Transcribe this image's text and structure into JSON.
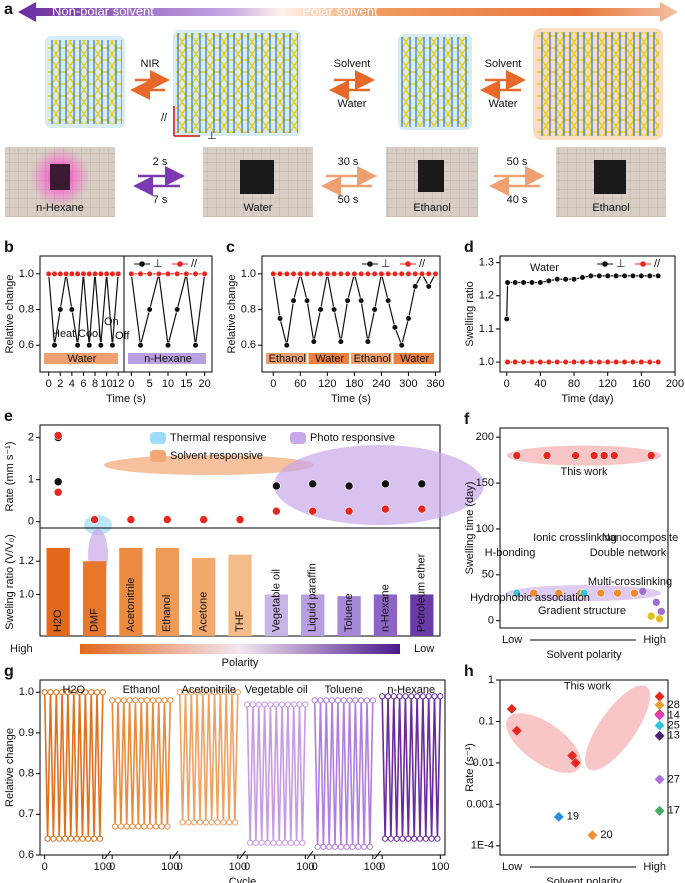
{
  "panel_a": {
    "label": "a",
    "banner": [
      "Non-polar solvent",
      "Polar solvent"
    ],
    "transitions": [
      {
        "top": "NIR"
      },
      {
        "top": "Solvent",
        "bottom": "Water"
      },
      {
        "top": "Solvent",
        "bottom": "Water"
      }
    ],
    "axes": [
      "//",
      "⊥"
    ],
    "photos": [
      "n-Hexane",
      "Water",
      "Ethanol",
      "Ethanol"
    ],
    "times": [
      [
        "2 s",
        "7 s"
      ],
      [
        "30 s",
        "50 s"
      ],
      [
        "50 s",
        "40 s"
      ]
    ]
  },
  "chart_data": [
    {
      "type": "line",
      "label": "b",
      "ylabel": "Relative change",
      "xlabel": "Time (s)",
      "xlim": [
        -1.5,
        13
      ],
      "xticks": [
        0,
        2,
        4,
        6,
        8,
        10,
        12
      ],
      "ylim": [
        0.45,
        1.1
      ],
      "yticks": [
        0.6,
        0.8,
        {
          "value": 1,
          "label": "1.0"
        }
      ],
      "x": [
        0,
        1,
        2,
        3,
        4,
        5,
        6,
        7,
        8,
        9,
        10,
        11,
        12
      ],
      "series": [
        {
          "color": "#111111",
          "values": [
            1,
            0.6,
            0.8,
            1,
            0.8,
            0.6,
            1,
            0.6,
            1,
            0.6,
            1,
            0.6,
            1
          ]
        },
        {
          "color": "#e8261e",
          "values": [
            1,
            1,
            1,
            1,
            1,
            1,
            1,
            1,
            1,
            1,
            1,
            1,
            1
          ]
        }
      ],
      "segments": [
        {
          "label": "Water",
          "color": "#f0a070"
        }
      ],
      "annotations": [
        "Heat",
        "Cool",
        "On",
        "Off"
      ]
    },
    {
      "type": "line",
      "xlim": [
        -2,
        22
      ],
      "xticks": [
        0,
        5,
        10,
        15,
        20
      ],
      "ylim": [
        0.45,
        1.1
      ],
      "x": [
        0,
        2.5,
        5,
        7.5,
        10,
        12.5,
        15,
        17.5,
        20
      ],
      "series": [
        {
          "name": "⊥",
          "color": "#111111",
          "values": [
            1,
            0.6,
            0.8,
            1,
            0.6,
            0.8,
            1,
            0.6,
            1
          ]
        },
        {
          "name": "//",
          "color": "#e8261e",
          "values": [
            1,
            1,
            1,
            1,
            1,
            1,
            1,
            1,
            1
          ]
        }
      ],
      "segments": [
        {
          "label": "n-Hexane",
          "color": "#b9a0e0"
        }
      ]
    },
    {
      "type": "line",
      "label": "c",
      "ylabel": "Relative change",
      "xlabel": "Time (s)",
      "xlim": [
        -25,
        370
      ],
      "xticks": [
        0,
        60,
        120,
        180,
        240,
        300,
        360
      ],
      "ylim": [
        0.45,
        1.1
      ],
      "yticks": [
        0.6,
        0.8,
        {
          "value": 1,
          "label": "1.0"
        }
      ],
      "x": [
        0,
        15,
        30,
        45,
        60,
        75,
        90,
        105,
        120,
        135,
        150,
        165,
        180,
        195,
        210,
        225,
        240,
        255,
        270,
        285,
        300,
        315,
        330,
        345,
        360
      ],
      "series": [
        {
          "name": "⊥",
          "color": "#111111",
          "values": [
            1,
            0.75,
            0.6,
            0.85,
            1,
            0.85,
            0.62,
            0.8,
            1,
            0.8,
            0.62,
            0.85,
            1,
            0.85,
            0.62,
            0.8,
            1,
            0.85,
            0.7,
            0.6,
            0.75,
            0.93,
            1,
            0.93,
            1
          ]
        },
        {
          "name": "//",
          "color": "#e8261e",
          "values": [
            1,
            1,
            1,
            1,
            1,
            1,
            1,
            1,
            1,
            1,
            1,
            1,
            1,
            1,
            1,
            1,
            1,
            1,
            1,
            1,
            1,
            1,
            1,
            1,
            1
          ]
        }
      ],
      "segments": [
        {
          "label": "Ethanol",
          "color": "#f0a070"
        },
        {
          "label": "Water",
          "color": "#ec8040"
        },
        {
          "label": "Ethanol",
          "color": "#f0a070"
        },
        {
          "label": "Water",
          "color": "#ec8040"
        }
      ]
    },
    {
      "type": "line",
      "label": "d",
      "ylabel": "Swelling ratio",
      "xlabel": "Time (day)",
      "xlim": [
        -8,
        200
      ],
      "xticks": [
        0,
        40,
        80,
        120,
        160,
        200
      ],
      "ylim": [
        0.97,
        1.32
      ],
      "yticks": [
        {
          "value": 1,
          "label": "1.0"
        },
        1.1,
        1.2,
        1.3
      ],
      "x": [
        0,
        1,
        10,
        20,
        30,
        40,
        50,
        60,
        70,
        80,
        90,
        100,
        110,
        120,
        130,
        140,
        150,
        160,
        170,
        180
      ],
      "series": [
        {
          "name": "⊥",
          "color": "#111111",
          "values": [
            1.13,
            1.24,
            1.24,
            1.24,
            1.24,
            1.24,
            1.245,
            1.25,
            1.25,
            1.25,
            1.255,
            1.26,
            1.26,
            1.26,
            1.26,
            1.26,
            1.26,
            1.26,
            1.26,
            1.26
          ]
        },
        {
          "name": "//",
          "color": "#e8261e",
          "values": [
            1,
            1,
            1,
            1,
            1,
            1,
            1,
            1,
            1,
            1,
            1,
            1,
            1,
            1,
            1,
            1,
            1,
            1,
            1,
            1
          ]
        }
      ],
      "annotations": [
        "Water"
      ]
    },
    {
      "type": "scatter",
      "label": "e",
      "ylabel": "Rate (mm s⁻¹)",
      "ylim": [
        -0.15,
        2.3
      ],
      "yticks": [
        0,
        1,
        2
      ],
      "series": [
        {
          "color": "#111111",
          "values": [
            0.95,
            null,
            null,
            0.05,
            null,
            null,
            0.85,
            0.9,
            0.85,
            0.9,
            0.9
          ]
        },
        {
          "color": "#e8261e",
          "values": [
            0.7,
            0.05,
            0.05,
            0.05,
            0.05,
            0.05,
            0.25,
            0.25,
            0.25,
            0.3,
            0.3
          ]
        },
        {
          "color": "#111111",
          "values": [
            2.0,
            null,
            null,
            null,
            null,
            null,
            null,
            null,
            null,
            null,
            null
          ]
        },
        {
          "color": "#e8261e",
          "values": [
            2.05,
            null,
            null,
            null,
            null,
            null,
            null,
            null,
            null,
            null,
            null
          ]
        }
      ],
      "legend": [
        {
          "label": "Thermal responsive",
          "color": "#9fdcf5"
        },
        {
          "label": "Solvent responsive",
          "color": "#f3a774"
        },
        {
          "label": "Photo responsive",
          "color": "#c9a6ea"
        }
      ]
    },
    {
      "type": "bar",
      "ylabel": "Sweling ratio (V/V₀)",
      "ylim": [
        0.75,
        1.4
      ],
      "yticks": [
        {
          "value": 1,
          "label": "1.0"
        },
        1.2
      ],
      "categories": [
        "H2O",
        "DMF",
        "Acetonitrile",
        "Ethanol",
        "Acetone",
        "THF",
        "Vegetable oil",
        "Liquid paraffin",
        "Toluene",
        "n-Hexane",
        "Petroleum ether"
      ],
      "values": [
        1.28,
        1.2,
        1.28,
        1.28,
        1.22,
        1.24,
        1.0,
        1.0,
        0.99,
        1.0,
        1.0
      ],
      "colors": [
        "#e2681c",
        "#e8772c",
        "#ec8a40",
        "#ef9a56",
        "#f2aa6c",
        "#f4bc88",
        "#c8b4e6",
        "#b89ee0",
        "#a686d6",
        "#8d64c6",
        "#6c3aa8"
      ],
      "polarity": {
        "high": "High",
        "label": "Polarity",
        "low": "Low"
      }
    },
    {
      "type": "scatter",
      "label": "f",
      "ylabel": "Swelling time (day)",
      "xlabel": "Solvent polarity",
      "xends": [
        "Low",
        "High"
      ],
      "ylim": [
        -8,
        210
      ],
      "yticks": [
        0,
        50,
        100,
        150,
        200
      ],
      "series": [
        {
          "name": "This work",
          "color": "#e8261e",
          "values": [
            180,
            180,
            180,
            180,
            180,
            180,
            180
          ]
        },
        {
          "color": "#f08a30",
          "values": [
            30,
            30,
            30,
            30,
            30,
            30
          ]
        },
        {
          "color": "#3cc0e0",
          "values": [
            30,
            30
          ]
        },
        {
          "color": "#a070d0",
          "values": [
            32,
            20,
            10
          ]
        },
        {
          "color": "#e0c020",
          "values": [
            5,
            2
          ]
        }
      ],
      "annotations": [
        "Ionic crosslinking",
        "Nanocomposite",
        "H-bonding",
        "Double network",
        "Multi-crosslinking",
        "Hydrophobic association",
        "Gradient structure"
      ]
    },
    {
      "type": "multiline",
      "label": "g",
      "ylabel": "Relative change",
      "xlabel": "Cycle",
      "ylim": [
        0.6,
        1.03
      ],
      "yticks": [
        0.6,
        0.7,
        0.8,
        0.9,
        {
          "value": 1,
          "label": "1.0"
        }
      ],
      "xlim": [
        -8,
        108
      ],
      "xticks": [
        0,
        100
      ],
      "x": [
        0,
        5,
        10,
        15,
        20,
        25,
        30,
        35,
        40,
        45,
        50,
        55,
        60,
        65,
        70,
        75,
        80,
        85,
        90,
        95,
        100
      ],
      "series": [
        {
          "name": "H2O",
          "color": "#e0701a",
          "values": [
            1,
            0.64,
            1,
            0.64,
            1,
            0.64,
            1,
            0.64,
            1,
            0.64,
            1,
            0.64,
            1,
            0.64,
            1,
            0.64,
            1,
            0.64,
            1,
            0.64,
            1
          ]
        },
        {
          "name": "Ethanol",
          "color": "#ec8a3a",
          "values": [
            0.98,
            0.67,
            0.98,
            0.67,
            0.98,
            0.67,
            0.98,
            0.67,
            0.98,
            0.67,
            0.98,
            0.67,
            0.98,
            0.67,
            0.98,
            0.67,
            0.98,
            0.67,
            0.98,
            0.67,
            0.98
          ]
        },
        {
          "name": "Acetonitrile",
          "color": "#f0a060",
          "values": [
            1,
            0.68,
            1,
            0.68,
            1,
            0.68,
            1,
            0.68,
            1,
            0.68,
            1,
            0.68,
            1,
            0.68,
            1,
            0.68,
            1,
            0.68,
            1,
            0.68,
            1
          ]
        },
        {
          "name": "Vegetable oil",
          "color": "#c79ae6",
          "values": [
            0.97,
            0.63,
            0.97,
            0.63,
            0.97,
            0.63,
            0.97,
            0.63,
            0.97,
            0.63,
            0.97,
            0.63,
            0.97,
            0.63,
            0.97,
            0.63,
            0.97,
            0.63,
            0.97,
            0.63,
            0.97
          ]
        },
        {
          "name": "Toluene",
          "color": "#b07ee0",
          "values": [
            0.98,
            0.62,
            0.98,
            0.62,
            0.98,
            0.62,
            0.98,
            0.62,
            0.98,
            0.62,
            0.98,
            0.62,
            0.98,
            0.62,
            0.98,
            0.62,
            0.98,
            0.62,
            0.98,
            0.62,
            0.98
          ]
        },
        {
          "name": "n-Hexane",
          "color": "#6a2aa0",
          "values": [
            0.99,
            0.64,
            0.99,
            0.64,
            0.99,
            0.64,
            0.99,
            0.64,
            0.99,
            0.64,
            0.99,
            0.64,
            0.99,
            0.64,
            0.99,
            0.64,
            0.99,
            0.64,
            0.99,
            0.64,
            0.99
          ]
        }
      ]
    },
    {
      "type": "scatter",
      "label": "h",
      "ylabel": "Rate (s⁻¹)",
      "xlabel": "Solvent polarity",
      "xends": [
        "Low",
        "High"
      ],
      "log": true,
      "ylim": [
        6e-05,
        1
      ],
      "yticks": [
        {
          "value": 0.0001,
          "label": "1E-4"
        },
        0.001,
        0.01,
        0.1,
        1
      ],
      "series": [
        {
          "name": "This work",
          "color": "#e8261e",
          "values": [
            0.2,
            0.06,
            0.015,
            0.01,
            0.4,
            0.15
          ]
        },
        {
          "name": "28",
          "color": "#f0a030",
          "values": [
            0.25
          ]
        },
        {
          "name": "14",
          "color": "#e040c0",
          "values": [
            0.14
          ]
        },
        {
          "name": "25",
          "color": "#30c8d8",
          "values": [
            0.08
          ]
        },
        {
          "name": "13",
          "color": "#4a2070",
          "values": [
            0.045
          ]
        },
        {
          "name": "27",
          "color": "#b070e0",
          "values": [
            0.004
          ]
        },
        {
          "name": "17",
          "color": "#40b060",
          "values": [
            0.0007
          ]
        },
        {
          "name": "19",
          "color": "#2a8ee0",
          "values": [
            0.0005
          ]
        },
        {
          "name": "20",
          "color": "#f09030",
          "values": [
            0.00018
          ]
        }
      ]
    }
  ]
}
